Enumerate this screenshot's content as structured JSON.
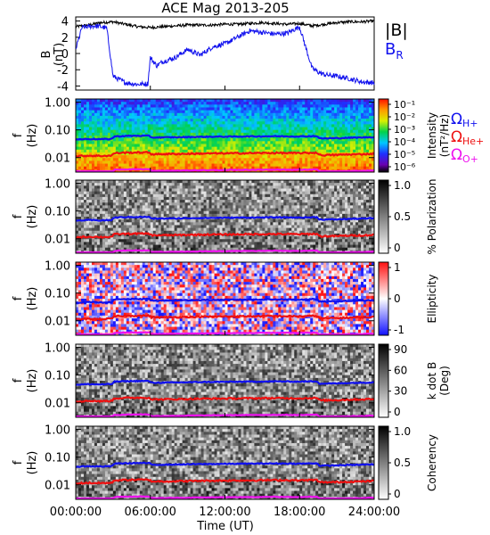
{
  "chart_data": [
    {
      "type": "line",
      "title": "ACE Mag 2013-205",
      "ylabel": "B",
      "yunit": "(nT)",
      "ylim": [
        -4.5,
        4.5
      ],
      "yticks": [
        "4",
        "2",
        "0",
        "-2",
        "-4"
      ],
      "series": [
        {
          "name": "|B|",
          "color": "#000000",
          "x": [
            0,
            1,
            2,
            3,
            4,
            5,
            6,
            7,
            8,
            9,
            10,
            11,
            12,
            13,
            14,
            15,
            16,
            17,
            18,
            19,
            20,
            21,
            22,
            23,
            24
          ],
          "values": [
            3.3,
            3.5,
            3.8,
            3.9,
            3.6,
            3.3,
            3.2,
            3.3,
            3.4,
            3.5,
            3.5,
            3.5,
            3.6,
            3.6,
            3.7,
            3.8,
            3.7,
            3.6,
            3.7,
            3.4,
            3.6,
            3.8,
            3.9,
            3.9,
            4.0
          ]
        },
        {
          "name_main": "B",
          "name_sub": "R",
          "color": "#1010ee",
          "x": [
            0,
            0.5,
            1,
            1.5,
            2,
            2.5,
            3,
            4,
            5,
            5.8,
            6,
            6.5,
            7,
            8,
            9,
            10,
            11,
            12,
            13,
            14,
            15,
            16,
            17,
            18,
            19,
            19.5,
            20,
            21,
            22,
            23,
            24
          ],
          "values": [
            0.5,
            3.2,
            3.3,
            3.4,
            3.3,
            3.1,
            -2.8,
            -3.6,
            -3.8,
            -3.7,
            -0.5,
            -1.5,
            -1.0,
            -0.5,
            0.5,
            -0.2,
            0.8,
            1.2,
            2.0,
            2.8,
            2.6,
            2.4,
            2.5,
            3.3,
            -1.8,
            -2.3,
            -2.6,
            -2.8,
            -3.1,
            -3.5,
            -3.6
          ]
        }
      ]
    },
    {
      "type": "heatmap",
      "quantity": "Intensity",
      "ylabel": "f",
      "yunit": "(Hz)",
      "colorbar_label": "Intensity",
      "colorbar_unit": "(nT²/Hz)",
      "colorbar_ticks": [
        "10⁻¹",
        "10⁻²",
        "10⁻³",
        "10⁻⁴",
        "10⁻⁵",
        "10⁻⁶"
      ],
      "colorbar_scale": "rainbow"
    },
    {
      "type": "heatmap",
      "quantity": "Polarization",
      "ylabel": "f",
      "yunit": "(Hz)",
      "colorbar_label": "% Polarization",
      "colorbar_unit": "",
      "colorbar_ticks": [
        "1.0",
        "0.5",
        "0"
      ],
      "colorbar_scale": "gray-inverse"
    },
    {
      "type": "heatmap",
      "quantity": "Ellipticity",
      "ylabel": "f",
      "yunit": "(Hz)",
      "colorbar_label": "Ellipticity",
      "colorbar_unit": "",
      "colorbar_ticks": [
        "1",
        "0",
        "-1"
      ],
      "colorbar_scale": "blue-white-red"
    },
    {
      "type": "heatmap",
      "quantity": "k dot B",
      "ylabel": "f",
      "yunit": "(Hz)",
      "colorbar_label": "k dot B",
      "colorbar_unit": "(Deg)",
      "colorbar_ticks": [
        "90",
        "60",
        "30",
        "0"
      ],
      "colorbar_scale": "gray-inverse"
    },
    {
      "type": "heatmap",
      "quantity": "Coherency",
      "ylabel": "f",
      "yunit": "(Hz)",
      "colorbar_label": "Coherency",
      "colorbar_unit": "",
      "colorbar_ticks": [
        "1.0",
        "0.5",
        "0"
      ],
      "colorbar_scale": "gray-inverse"
    }
  ],
  "spectrogram_axes": {
    "ylim": [
      0.003,
      1.3
    ],
    "yscale": "log",
    "yticks": [
      "1.00",
      "0.10",
      "0.01"
    ]
  },
  "gyro_lines": {
    "legend": [
      {
        "symbol": "Ω",
        "sub": "H+",
        "color": "#1010ee"
      },
      {
        "symbol": "Ω",
        "sub": "He+",
        "color": "#ee1010"
      },
      {
        "symbol": "Ω",
        "sub": "O+",
        "color": "#ee10ee"
      }
    ],
    "H_plus_hz": {
      "x": [
        0,
        1,
        2,
        2.9,
        3.1,
        4,
        5,
        5.9,
        6.1,
        8,
        10,
        12,
        14,
        16,
        18,
        19.4,
        19.6,
        21,
        22,
        23,
        24
      ],
      "values": [
        0.045,
        0.047,
        0.046,
        0.047,
        0.058,
        0.06,
        0.061,
        0.061,
        0.053,
        0.054,
        0.056,
        0.057,
        0.058,
        0.059,
        0.058,
        0.06,
        0.049,
        0.05,
        0.052,
        0.053,
        0.055
      ]
    }
  },
  "time_axis": {
    "xlim": [
      0,
      24
    ],
    "ticks": [
      "00:00:00",
      "06:00:00",
      "12:00:00",
      "18:00:00",
      "24:00:00"
    ],
    "xlabel": "Time (UT)"
  }
}
